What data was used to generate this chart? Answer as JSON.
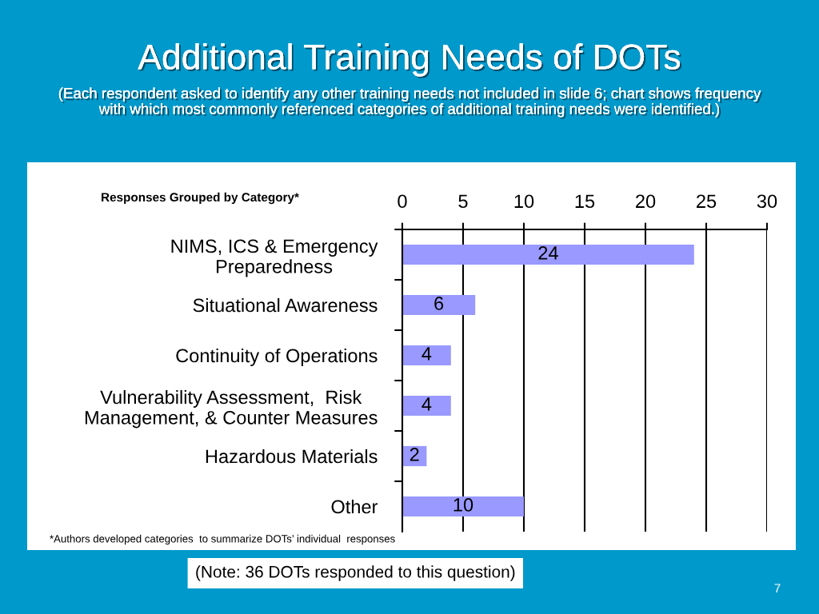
{
  "chart_data": {
    "type": "bar",
    "orientation": "horizontal",
    "title": "Additional Training Needs of DOTs",
    "subtitle": "(Each respondent asked to identify any other training needs not included in slide 6; chart shows frequency\nwith which most commonly referenced categories of additional training needs were identified.)",
    "ylabel": "Responses Grouped by Category*",
    "categories": [
      "NIMS, ICS & Emergency\nPreparedness",
      "Situational Awareness",
      "Continuity of Operations",
      "Vulnerability Assessment,  Risk\nManagement, & Counter Measures",
      "Hazardous Materials",
      "Other"
    ],
    "values": [
      24,
      6,
      4,
      4,
      2,
      10
    ],
    "color": "#9999ff",
    "xlim": [
      0,
      30
    ],
    "xticks": [
      0,
      5,
      10,
      15,
      20,
      25,
      30
    ],
    "grid": "x",
    "data_labels": true,
    "annotations": [
      "*Authors developed categories  to summarize DOTs’ individual  responses",
      "(Note: 36 DOTs responded to this question)",
      "7"
    ]
  }
}
